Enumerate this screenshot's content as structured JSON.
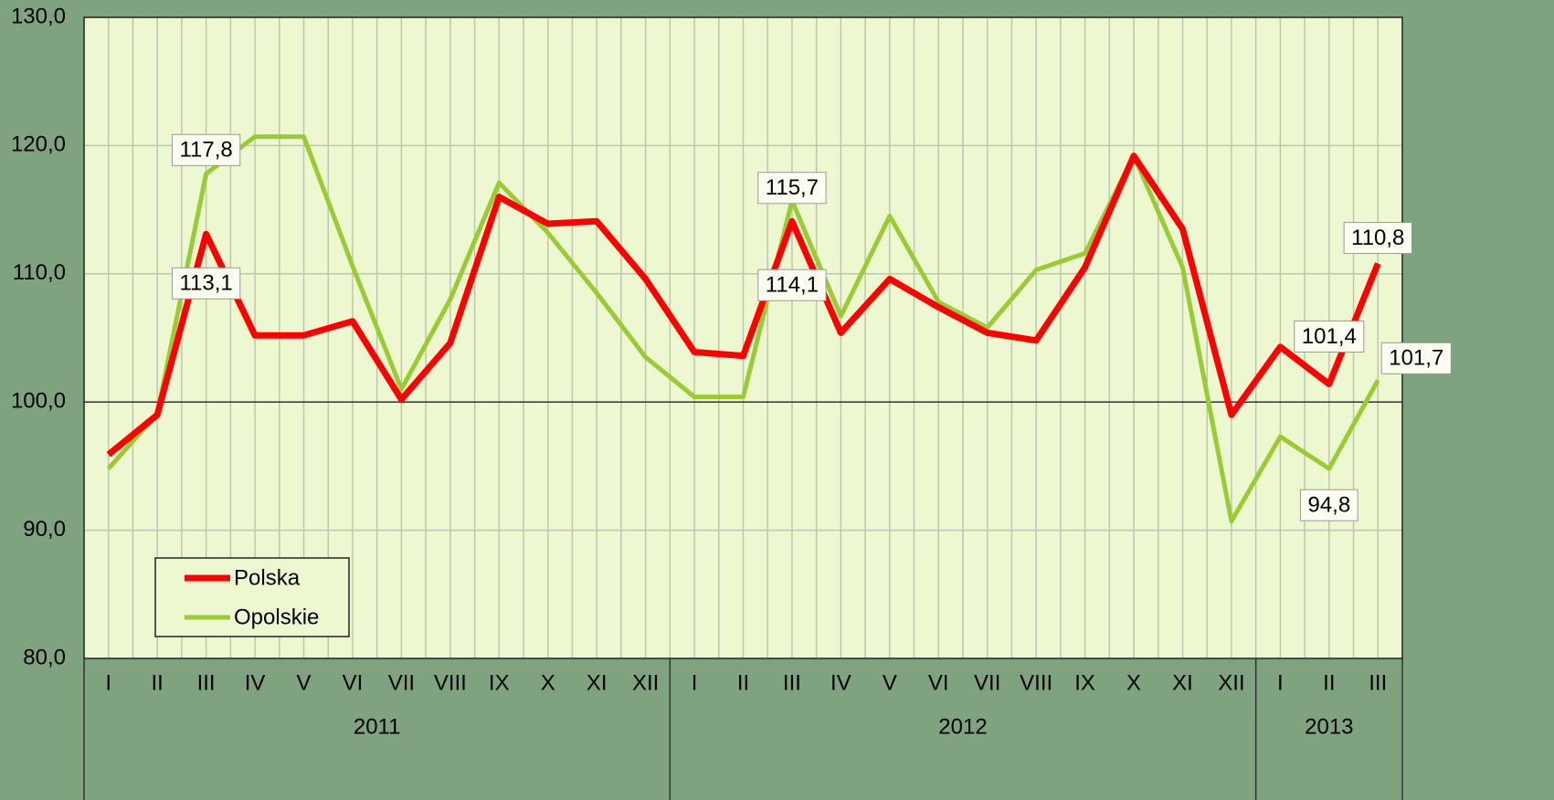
{
  "chart_data": {
    "type": "line",
    "categories": [
      "I",
      "II",
      "III",
      "IV",
      "V",
      "VI",
      "VII",
      "VIII",
      "IX",
      "X",
      "XI",
      "XII",
      "I",
      "II",
      "III",
      "IV",
      "V",
      "VI",
      "VII",
      "VIII",
      "IX",
      "X",
      "XI",
      "XII",
      "I",
      "II",
      "III"
    ],
    "x_groups": [
      {
        "label": "2011",
        "size": 12
      },
      {
        "label": "2012",
        "size": 12
      },
      {
        "label": "2013",
        "size": 3
      }
    ],
    "series": [
      {
        "name": "Polska",
        "color": "#ff0000",
        "values": [
          95.9,
          99.0,
          113.1,
          105.2,
          105.2,
          106.3,
          100.2,
          104.6,
          116.0,
          113.9,
          114.1,
          109.6,
          103.9,
          103.6,
          114.1,
          105.4,
          109.6,
          107.4,
          105.4,
          104.8,
          110.5,
          119.2,
          113.5,
          99.0,
          104.3,
          101.4,
          110.8
        ],
        "value_labels": [
          null,
          null,
          "113,1",
          null,
          null,
          null,
          null,
          null,
          null,
          null,
          null,
          null,
          null,
          null,
          "114,1",
          null,
          null,
          null,
          null,
          null,
          null,
          null,
          null,
          null,
          null,
          "101,4",
          "110,8"
        ]
      },
      {
        "name": "Opolskie",
        "color": "#99cc33",
        "values": [
          94.8,
          99.1,
          117.8,
          120.7,
          120.7,
          110.6,
          101.0,
          108.0,
          117.1,
          113.2,
          108.5,
          103.5,
          100.4,
          100.4,
          115.7,
          106.7,
          114.5,
          107.8,
          105.8,
          110.3,
          111.6,
          119.2,
          110.5,
          90.7,
          97.3,
          94.8,
          101.7
        ],
        "value_labels": [
          null,
          null,
          "117,8",
          null,
          null,
          null,
          null,
          null,
          null,
          null,
          null,
          null,
          null,
          null,
          "115,7",
          null,
          null,
          null,
          null,
          null,
          null,
          null,
          null,
          null,
          null,
          "94,8",
          "101,7"
        ]
      }
    ],
    "ylim": [
      80,
      130
    ],
    "yticks": [
      {
        "value": 80,
        "label": "80,0"
      },
      {
        "value": 90,
        "label": "90,0"
      },
      {
        "value": 100,
        "label": "100,0"
      },
      {
        "value": 110,
        "label": "110,0"
      },
      {
        "value": 120,
        "label": "120,0"
      },
      {
        "value": 130,
        "label": "130,0"
      }
    ],
    "grid": true,
    "legend": "lower left"
  }
}
